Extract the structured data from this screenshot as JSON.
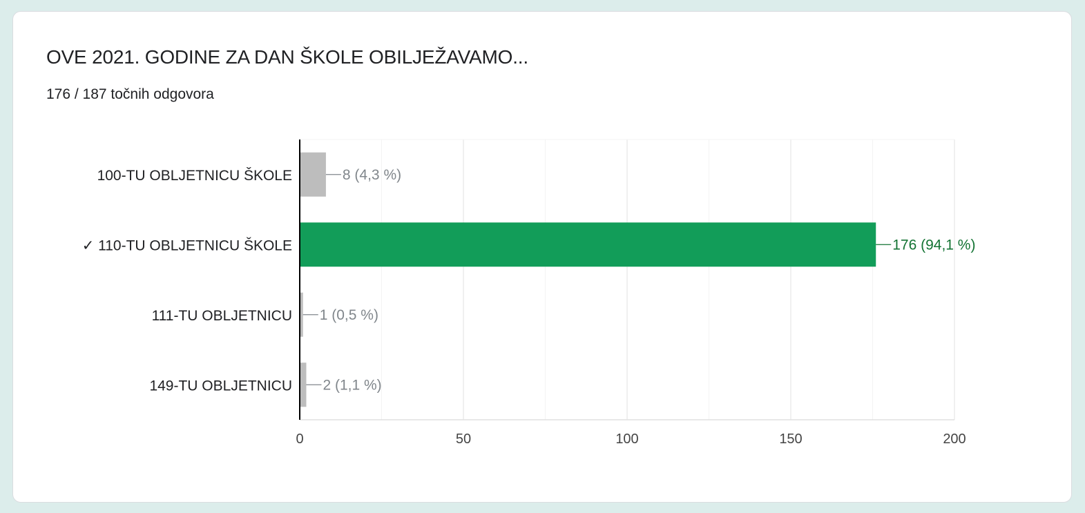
{
  "card": {
    "title": "OVE 2021. GODINE ZA DAN ŠKOLE OBILJEŽAVAMO...",
    "score": "176 / 187 točnih odgovora"
  },
  "colors": {
    "background": "#dcedeb",
    "correct_bar": "#129d59",
    "correct_label": "#137333",
    "incorrect_bar": "#bdbdbd",
    "incorrect_label": "#80868b",
    "gridline": "#ebebeb",
    "axis": "#000000"
  },
  "chart_data": {
    "type": "bar",
    "orientation": "horizontal",
    "categories": [
      "100-TU OBLJETNICU ŠKOLE",
      "✓ 110-TU OBLJETNICU ŠKOLE",
      "111-TU OBLJETNICU",
      "149-TU OBLJETNICU"
    ],
    "values": [
      8,
      176,
      1,
      2
    ],
    "data_labels": [
      "8 (4,3 %)",
      "176 (94,1 %)",
      "1 (0,5 %)",
      "2 (1,1 %)"
    ],
    "correct": [
      false,
      true,
      false,
      false
    ],
    "xlim": [
      0,
      200
    ],
    "ticks": [
      0,
      50,
      100,
      150,
      200
    ],
    "minor_gridlines": [
      25,
      75,
      125,
      175
    ],
    "grid": true,
    "legend": "none"
  }
}
